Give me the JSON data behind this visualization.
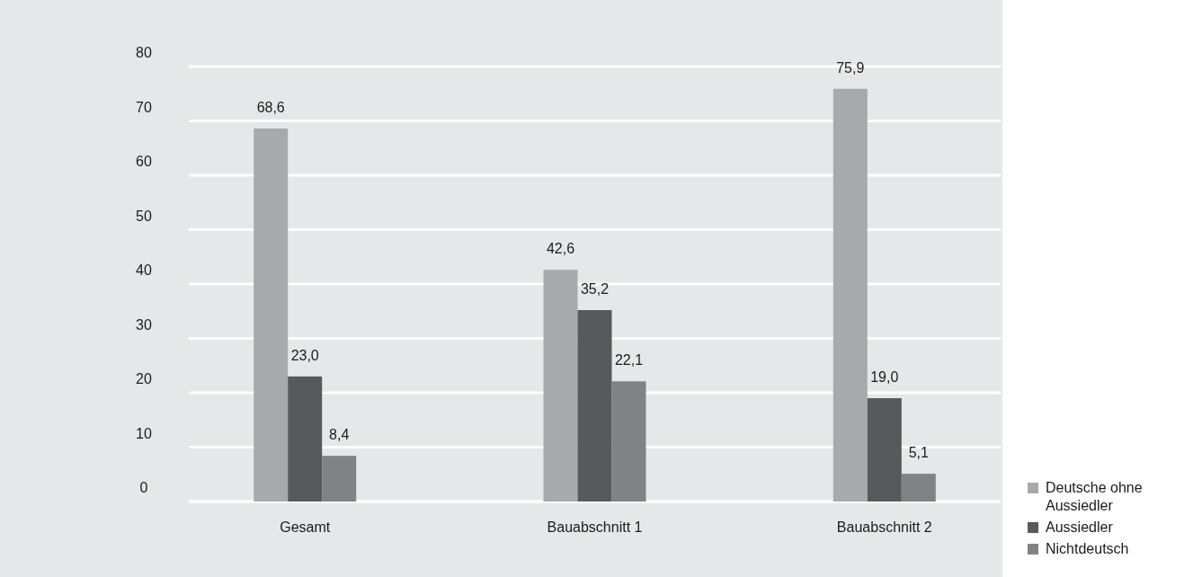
{
  "chart_data": {
    "type": "bar",
    "categories": [
      "Gesamt",
      "Bauabschnitt 1",
      "Bauabschnitt 2"
    ],
    "series": [
      {
        "name": "Deutsche ohne Aussiedler",
        "color": "#a7a9ac",
        "values": [
          68.6,
          42.6,
          75.9
        ],
        "value_labels": [
          "68,6",
          "42,6",
          "75,9"
        ]
      },
      {
        "name": "Aussiedler",
        "color": "#58595b",
        "values": [
          23.0,
          35.2,
          19.0
        ],
        "value_labels": [
          "23,0",
          "35,2",
          "19,0"
        ]
      },
      {
        "name": "Nichtdeutsch",
        "color": "#808285",
        "values": [
          8.4,
          22.1,
          5.1
        ],
        "value_labels": [
          "8,4",
          "22,1",
          "5,1"
        ]
      }
    ],
    "ylim": [
      0,
      80
    ],
    "yticks": [
      0,
      10,
      20,
      30,
      40,
      50,
      60,
      70,
      80
    ],
    "grid": "y",
    "legend": "bottom right"
  }
}
